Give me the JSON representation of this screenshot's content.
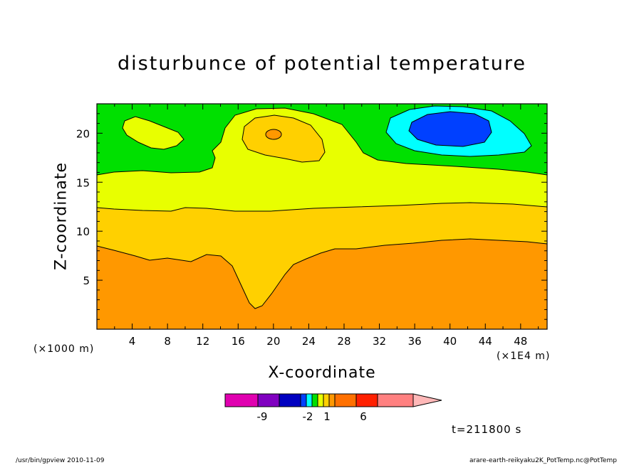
{
  "chart_data": {
    "type": "heatmap",
    "title": "disturbunce of potential temperature",
    "xlabel": "X-coordinate",
    "ylabel": "Z-coordinate",
    "x_unit_left": "(×1000 m)",
    "x_unit_right": "(×1E4 m)",
    "x_ticks": [
      "4",
      "8",
      "12",
      "16",
      "20",
      "24",
      "28",
      "32",
      "36",
      "40",
      "44",
      "48"
    ],
    "y_ticks": [
      "5",
      "10",
      "15",
      "20"
    ],
    "xlim": [
      0,
      51
    ],
    "ylim": [
      0,
      23
    ],
    "colorbar": {
      "tick_labels": [
        "-9",
        "-2",
        "1",
        "6"
      ],
      "colors": [
        "#e000b0",
        "#8000c0",
        "#0000c0",
        "#0040ff",
        "#00ffff",
        "#00e000",
        "#e8ff00",
        "#ffd000",
        "#ff9800",
        "#ff7000",
        "#ff2000",
        "#ff8080",
        "#ffb8b8"
      ]
    },
    "regions": [
      {
        "level": "orange (lowest band)",
        "color": "#ff9800"
      },
      {
        "level": "gold",
        "color": "#ffd000"
      },
      {
        "level": "yellow",
        "color": "#e8ff00"
      },
      {
        "level": "green (top)",
        "color": "#00e000"
      },
      {
        "level": "cyan (negative)",
        "color": "#00ffff"
      },
      {
        "level": "blue (most negative)",
        "color": "#0040ff"
      }
    ],
    "time_label": "t=211800 s"
  },
  "footer": {
    "left": "/usr/bin/gpview  2010-11-09",
    "right": "arare-earth-reikyaku2K_PotTemp.nc@PotTemp"
  }
}
